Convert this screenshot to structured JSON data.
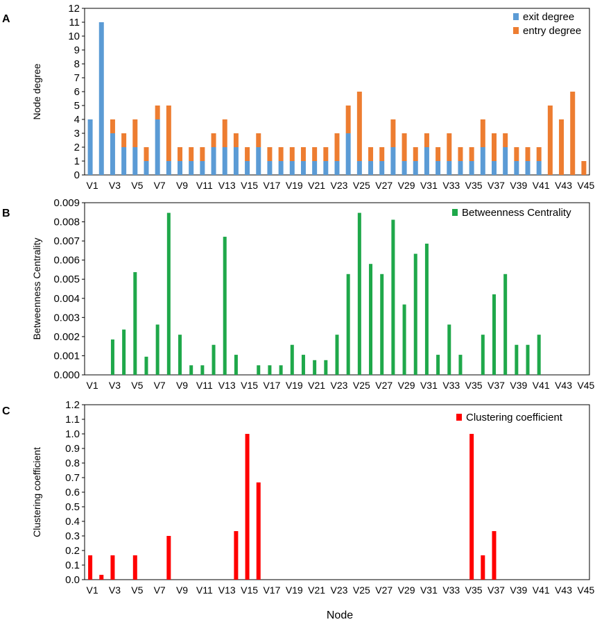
{
  "panels": [
    "A",
    "B",
    "C"
  ],
  "shared_xlabel": "Node",
  "chart_data": [
    {
      "type": "bar",
      "stacked": true,
      "panel": "A",
      "ylabel": "Node degree",
      "ylim": [
        0,
        12
      ],
      "yticks": [
        0,
        1,
        2,
        3,
        4,
        5,
        6,
        7,
        8,
        9,
        10,
        11,
        12
      ],
      "ytick_labels": [
        "0",
        "1",
        "2",
        "3",
        "4",
        "5",
        "6",
        "7",
        "8",
        "9",
        "10",
        "11",
        "12"
      ],
      "grid": false,
      "legend_position": "top-right",
      "categories": [
        "V1",
        "V2",
        "V3",
        "V4",
        "V5",
        "V6",
        "V7",
        "V8",
        "V9",
        "V10",
        "V11",
        "V12",
        "V13",
        "V14",
        "V15",
        "V16",
        "V17",
        "V18",
        "V19",
        "V20",
        "V21",
        "V22",
        "V23",
        "V24",
        "V25",
        "V26",
        "V27",
        "V28",
        "V29",
        "V30",
        "V31",
        "V32",
        "V33",
        "V34",
        "V35",
        "V36",
        "V37",
        "V38",
        "V39",
        "V40",
        "V41",
        "V42",
        "V43",
        "V44",
        "V45"
      ],
      "xtick_labels": [
        "V1",
        "V3",
        "V5",
        "V7",
        "V9",
        "V11",
        "V13",
        "V15",
        "V17",
        "V19",
        "V21",
        "V23",
        "V25",
        "V27",
        "V29",
        "V31",
        "V33",
        "V35",
        "V37",
        "V39",
        "V41",
        "V43",
        "V45"
      ],
      "series": [
        {
          "name": "exit degree",
          "color": "#5b9bd5",
          "values": [
            4,
            11,
            3,
            2,
            2,
            1,
            4,
            1,
            1,
            1,
            1,
            2,
            2,
            2,
            1,
            2,
            1,
            1,
            1,
            1,
            1,
            1,
            1,
            3,
            1,
            1,
            1,
            2,
            1,
            1,
            2,
            1,
            1,
            1,
            1,
            2,
            1,
            2,
            1,
            1,
            1,
            0,
            0,
            0,
            0
          ]
        },
        {
          "name": "entry degree",
          "color": "#ed7d31",
          "values": [
            0,
            0,
            1,
            1,
            2,
            1,
            1,
            4,
            1,
            1,
            1,
            1,
            2,
            1,
            1,
            1,
            1,
            1,
            1,
            1,
            1,
            1,
            2,
            2,
            5,
            1,
            1,
            2,
            2,
            1,
            1,
            1,
            2,
            1,
            1,
            2,
            2,
            1,
            1,
            1,
            1,
            5,
            4,
            6,
            1
          ]
        }
      ]
    },
    {
      "type": "bar",
      "panel": "B",
      "ylabel": "Betweenness Centrality",
      "ylim": [
        0,
        0.009
      ],
      "yticks": [
        0,
        0.001,
        0.002,
        0.003,
        0.004,
        0.005,
        0.006,
        0.007,
        0.008,
        0.009
      ],
      "ytick_labels": [
        "0.000",
        "0.001",
        "0.002",
        "0.003",
        "0.004",
        "0.005",
        "0.006",
        "0.007",
        "0.008",
        "0.009"
      ],
      "grid": false,
      "legend_position": "top-right",
      "categories": [
        "V1",
        "V2",
        "V3",
        "V4",
        "V5",
        "V6",
        "V7",
        "V8",
        "V9",
        "V10",
        "V11",
        "V12",
        "V13",
        "V14",
        "V15",
        "V16",
        "V17",
        "V18",
        "V19",
        "V20",
        "V21",
        "V22",
        "V23",
        "V24",
        "V25",
        "V26",
        "V27",
        "V28",
        "V29",
        "V30",
        "V31",
        "V32",
        "V33",
        "V34",
        "V35",
        "V36",
        "V37",
        "V38",
        "V39",
        "V40",
        "V41",
        "V42",
        "V43",
        "V44",
        "V45"
      ],
      "xtick_labels": [
        "V1",
        "V3",
        "V5",
        "V7",
        "V9",
        "V11",
        "V13",
        "V15",
        "V17",
        "V19",
        "V21",
        "V23",
        "V25",
        "V27",
        "V29",
        "V31",
        "V33",
        "V35",
        "V37",
        "V39",
        "V41",
        "V43",
        "V45"
      ],
      "series": [
        {
          "name": "Betweenness Centrality",
          "color": "#1fa84a",
          "values": [
            0,
            0,
            0.00185,
            0.00237,
            0.00537,
            0.00095,
            0.00263,
            0.00847,
            0.0021,
            0.0005,
            0.0005,
            0.00157,
            0.00722,
            0.00105,
            0,
            0.0005,
            0.0005,
            0.0005,
            0.00157,
            0.00105,
            0.00077,
            0.00077,
            0.0021,
            0.00527,
            0.00847,
            0.0058,
            0.00527,
            0.00811,
            0.00368,
            0.00633,
            0.00686,
            0.00105,
            0.00263,
            0.00105,
            0,
            0.0021,
            0.00421,
            0.00527,
            0.00157,
            0.00157,
            0.0021,
            0,
            0,
            0,
            0
          ]
        }
      ]
    },
    {
      "type": "bar",
      "panel": "C",
      "ylabel": "Clustering coefficient",
      "xlabel": "Node",
      "ylim": [
        0,
        1.2
      ],
      "yticks": [
        0,
        0.1,
        0.2,
        0.3,
        0.4,
        0.5,
        0.6,
        0.7,
        0.8,
        0.9,
        1.0,
        1.1,
        1.2
      ],
      "ytick_labels": [
        "0.0",
        "0.1",
        "0.2",
        "0.3",
        "0.4",
        "0.5",
        "0.6",
        "0.7",
        "0.8",
        "0.9",
        "1.0",
        "1.1",
        "1.2"
      ],
      "grid": false,
      "legend_position": "top-right",
      "categories": [
        "V1",
        "V2",
        "V3",
        "V4",
        "V5",
        "V6",
        "V7",
        "V8",
        "V9",
        "V10",
        "V11",
        "V12",
        "V13",
        "V14",
        "V15",
        "V16",
        "V17",
        "V18",
        "V19",
        "V20",
        "V21",
        "V22",
        "V23",
        "V24",
        "V25",
        "V26",
        "V27",
        "V28",
        "V29",
        "V30",
        "V31",
        "V32",
        "V33",
        "V34",
        "V35",
        "V36",
        "V37",
        "V38",
        "V39",
        "V40",
        "V41",
        "V42",
        "V43",
        "V44",
        "V45"
      ],
      "xtick_labels": [
        "V1",
        "V3",
        "V5",
        "V7",
        "V9",
        "V11",
        "V13",
        "V15",
        "V17",
        "V19",
        "V21",
        "V23",
        "V25",
        "V27",
        "V29",
        "V31",
        "V33",
        "V35",
        "V37",
        "V39",
        "V41",
        "V43",
        "V45"
      ],
      "series": [
        {
          "name": "Clustering coefficient",
          "color": "#ff0000",
          "values": [
            0.167,
            0.033,
            0.167,
            0,
            0.167,
            0,
            0,
            0.3,
            0,
            0,
            0,
            0,
            0,
            0.333,
            1.0,
            0.667,
            0,
            0,
            0,
            0,
            0,
            0,
            0,
            0,
            0,
            0,
            0,
            0,
            0,
            0,
            0,
            0,
            0,
            0,
            1.0,
            0.167,
            0.333,
            0,
            0,
            0,
            0,
            0,
            0,
            0,
            0
          ]
        }
      ]
    }
  ]
}
